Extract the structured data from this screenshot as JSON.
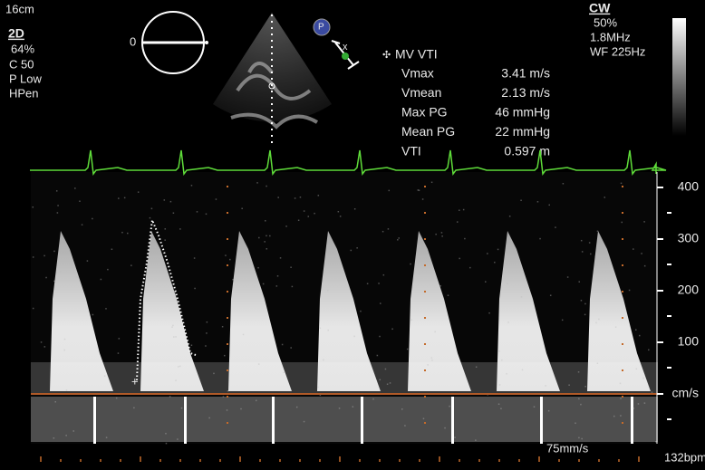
{
  "top_left": {
    "depth": "16cm",
    "mode": "2D",
    "gain": "64%",
    "compression": "C 50",
    "power": "P Low",
    "preset": "HPen"
  },
  "top_right": {
    "mode": "CW",
    "gain": "50%",
    "frequency": "1.8MHz",
    "wall_filter": "WF 225Hz"
  },
  "sector_marker": "0",
  "measurement": {
    "title": "MV VTI",
    "rows": [
      [
        "Vmax",
        "3.41 m/s"
      ],
      [
        "Vmean",
        "2.13 m/s"
      ],
      [
        "Max PG",
        "46 mmHg"
      ],
      [
        "Mean PG",
        "22 mmHg"
      ],
      [
        "VTI",
        "0.597 m"
      ]
    ]
  },
  "scale": {
    "labels": [
      "400",
      "300",
      "200",
      "100",
      "cm/s"
    ]
  },
  "sweep_speed": "75mm/s",
  "heart_rate": "132bpm"
}
